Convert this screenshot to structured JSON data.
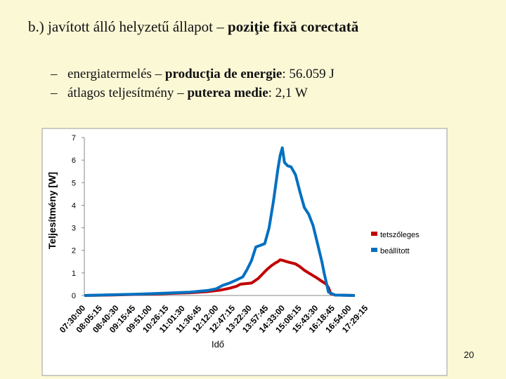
{
  "slide": {
    "title_plain": "b.) javított álló helyzetű  állapot – ",
    "title_bold": "poziţie fixă corectată",
    "bullets": [
      {
        "dash": "–",
        "plain1": "energiatermelés – ",
        "bold": "producţia de energie",
        "plain2": ":  56.059 J"
      },
      {
        "dash": "–",
        "plain1": "átlagos teljesítmény – ",
        "bold": "puterea medie",
        "plain2": ":  2,1 W"
      }
    ],
    "page_number": "20"
  },
  "chart_data": {
    "type": "line",
    "ylabel": "Teljesítmény [W]",
    "xlabel": "Idő",
    "ylim": [
      0,
      7
    ],
    "yticks": [
      "0",
      "1",
      "2",
      "3",
      "4",
      "5",
      "6",
      "7"
    ],
    "grid": false,
    "legend_position": "right",
    "x_tick_labels": [
      "07:30:00",
      "08:05:15",
      "08:40:30",
      "09:15:45",
      "09:51:00",
      "10:26:15",
      "11:01:30",
      "11:36:45",
      "12:12:00",
      "12:47:15",
      "13:22:30",
      "13:57:45",
      "14:33:00",
      "15:08:15",
      "15:43:30",
      "16:18:45",
      "16:54:00",
      "17:29:15"
    ],
    "x_range": [
      "07:30",
      "17:45"
    ],
    "series": [
      {
        "name": "tetszőleges",
        "color": "#c00000",
        "points": [
          [
            "07:30",
            0.0
          ],
          [
            "08:30",
            0.02
          ],
          [
            "09:30",
            0.05
          ],
          [
            "10:30",
            0.08
          ],
          [
            "11:30",
            0.12
          ],
          [
            "12:10",
            0.17
          ],
          [
            "12:40",
            0.24
          ],
          [
            "13:00",
            0.32
          ],
          [
            "13:15",
            0.4
          ],
          [
            "13:25",
            0.5
          ],
          [
            "13:35",
            0.52
          ],
          [
            "13:50",
            0.55
          ],
          [
            "14:05",
            0.75
          ],
          [
            "14:15",
            0.95
          ],
          [
            "14:25",
            1.15
          ],
          [
            "14:35",
            1.32
          ],
          [
            "14:45",
            1.45
          ],
          [
            "14:50",
            1.5
          ],
          [
            "14:55",
            1.58
          ],
          [
            "15:02",
            1.55
          ],
          [
            "15:10",
            1.5
          ],
          [
            "15:20",
            1.45
          ],
          [
            "15:30",
            1.4
          ],
          [
            "15:40",
            1.28
          ],
          [
            "15:50",
            1.12
          ],
          [
            "16:00",
            1.0
          ],
          [
            "16:10",
            0.88
          ],
          [
            "16:20",
            0.76
          ],
          [
            "16:30",
            0.63
          ],
          [
            "16:40",
            0.5
          ],
          [
            "16:45",
            0.35
          ],
          [
            "16:50",
            0.08
          ],
          [
            "17:00",
            0.02
          ],
          [
            "17:45",
            0.0
          ]
        ]
      },
      {
        "name": "beállított",
        "color": "#0070c0",
        "points": [
          [
            "07:30",
            0.0
          ],
          [
            "08:30",
            0.03
          ],
          [
            "09:30",
            0.06
          ],
          [
            "10:30",
            0.1
          ],
          [
            "11:30",
            0.15
          ],
          [
            "12:10",
            0.22
          ],
          [
            "12:30",
            0.3
          ],
          [
            "12:45",
            0.45
          ],
          [
            "13:00",
            0.55
          ],
          [
            "13:15",
            0.68
          ],
          [
            "13:30",
            0.82
          ],
          [
            "13:40",
            1.15
          ],
          [
            "13:50",
            1.55
          ],
          [
            "14:00",
            2.15
          ],
          [
            "14:10",
            2.22
          ],
          [
            "14:20",
            2.3
          ],
          [
            "14:30",
            3.0
          ],
          [
            "14:40",
            4.2
          ],
          [
            "14:50",
            5.6
          ],
          [
            "14:55",
            6.2
          ],
          [
            "15:00",
            6.55
          ],
          [
            "15:05",
            5.9
          ],
          [
            "15:12",
            5.75
          ],
          [
            "15:20",
            5.7
          ],
          [
            "15:30",
            5.35
          ],
          [
            "15:40",
            4.6
          ],
          [
            "15:50",
            3.9
          ],
          [
            "16:00",
            3.6
          ],
          [
            "16:10",
            3.1
          ],
          [
            "16:20",
            2.3
          ],
          [
            "16:30",
            1.5
          ],
          [
            "16:35",
            1.0
          ],
          [
            "16:45",
            0.15
          ],
          [
            "17:00",
            0.02
          ],
          [
            "17:45",
            0.0
          ]
        ]
      }
    ]
  }
}
